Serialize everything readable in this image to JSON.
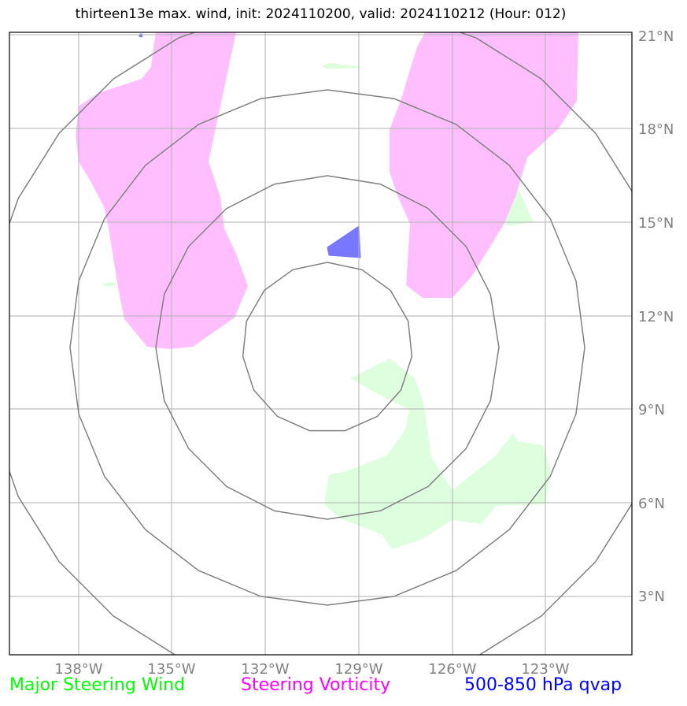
{
  "title": "thirteen13e max. wind, init: 2024110200, valid: 2024110212 (Hour: 012)",
  "longitude_labels": [
    "138°W",
    "135°W",
    "132°W",
    "129°W",
    "126°W",
    "123°W"
  ],
  "latitude_labels": [
    "21°N",
    "18°N",
    "15°N",
    "12°N",
    "9°N",
    "6°N",
    "3°N"
  ],
  "legend": {
    "wind": "Major Steering Wind",
    "vorticity": "Steering Vorticity",
    "qvap": "500-850 hPa qvap"
  },
  "colors": {
    "wind_label": "#00ff00",
    "wind_fill": "#ddffdd",
    "vorticity_label": "#ff00ff",
    "vorticity_fill": "#ffbfff",
    "qvap_label": "#0000ff",
    "qvap_fill": "#7878ff",
    "grid": "#b0b0b0",
    "range_rings": "#808080",
    "frame": "#000000"
  }
}
